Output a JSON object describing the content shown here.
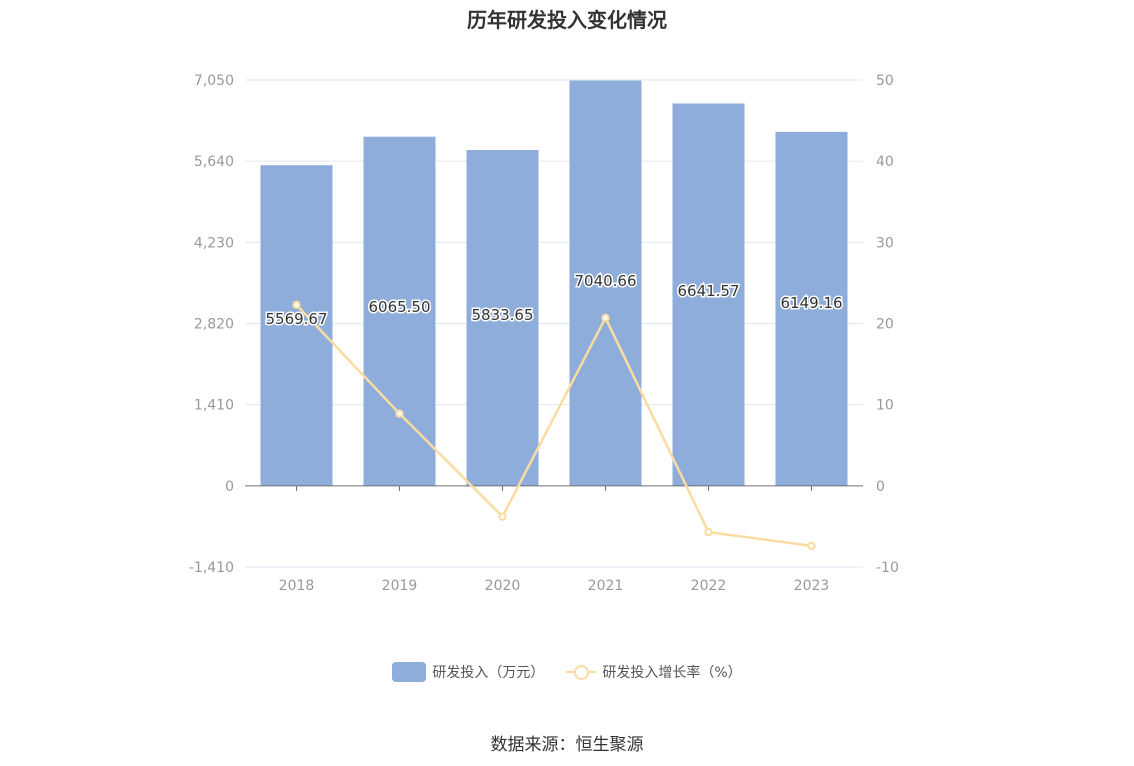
{
  "chart_data": {
    "type": "bar",
    "title": "历年研发投入变化情况",
    "categories": [
      "2018",
      "2019",
      "2020",
      "2021",
      "2022",
      "2023"
    ],
    "series": [
      {
        "name": "研发投入（万元）",
        "type": "bar",
        "axis": "left",
        "values": [
          5569.67,
          6065.5,
          5833.65,
          7040.66,
          6641.57,
          6149.16
        ],
        "labels": [
          "5569.67",
          "6065.50",
          "5833.65",
          "7040.66",
          "6641.57",
          "6149.16"
        ],
        "color": "#8eaddb"
      },
      {
        "name": "研发投入增长率（%）",
        "type": "line",
        "axis": "right",
        "values": [
          22.3,
          8.9,
          -3.8,
          20.7,
          -5.7,
          -7.4
        ],
        "color": "#fbdca0"
      }
    ],
    "y_left": {
      "ticks": [
        "7,050",
        "5,640",
        "4,230",
        "2,820",
        "1,410",
        "0",
        "-1,410"
      ],
      "tick_values": [
        7050,
        5640,
        4230,
        2820,
        1410,
        0,
        -1410
      ],
      "min": -1410,
      "max": 7050
    },
    "y_right": {
      "ticks": [
        "50",
        "40",
        "30",
        "20",
        "10",
        "0",
        "-10"
      ],
      "tick_values": [
        50,
        40,
        30,
        20,
        10,
        0,
        -10
      ],
      "min": -10,
      "max": 50
    },
    "grid": true,
    "legend": "bottom-center"
  },
  "source": "数据来源：恒生聚源",
  "colors": {
    "bar": "#8eaddb",
    "line": "#fbdca0",
    "grid": "#e0e6f1",
    "axis": "#6e7079",
    "tick_text": "#999999"
  }
}
